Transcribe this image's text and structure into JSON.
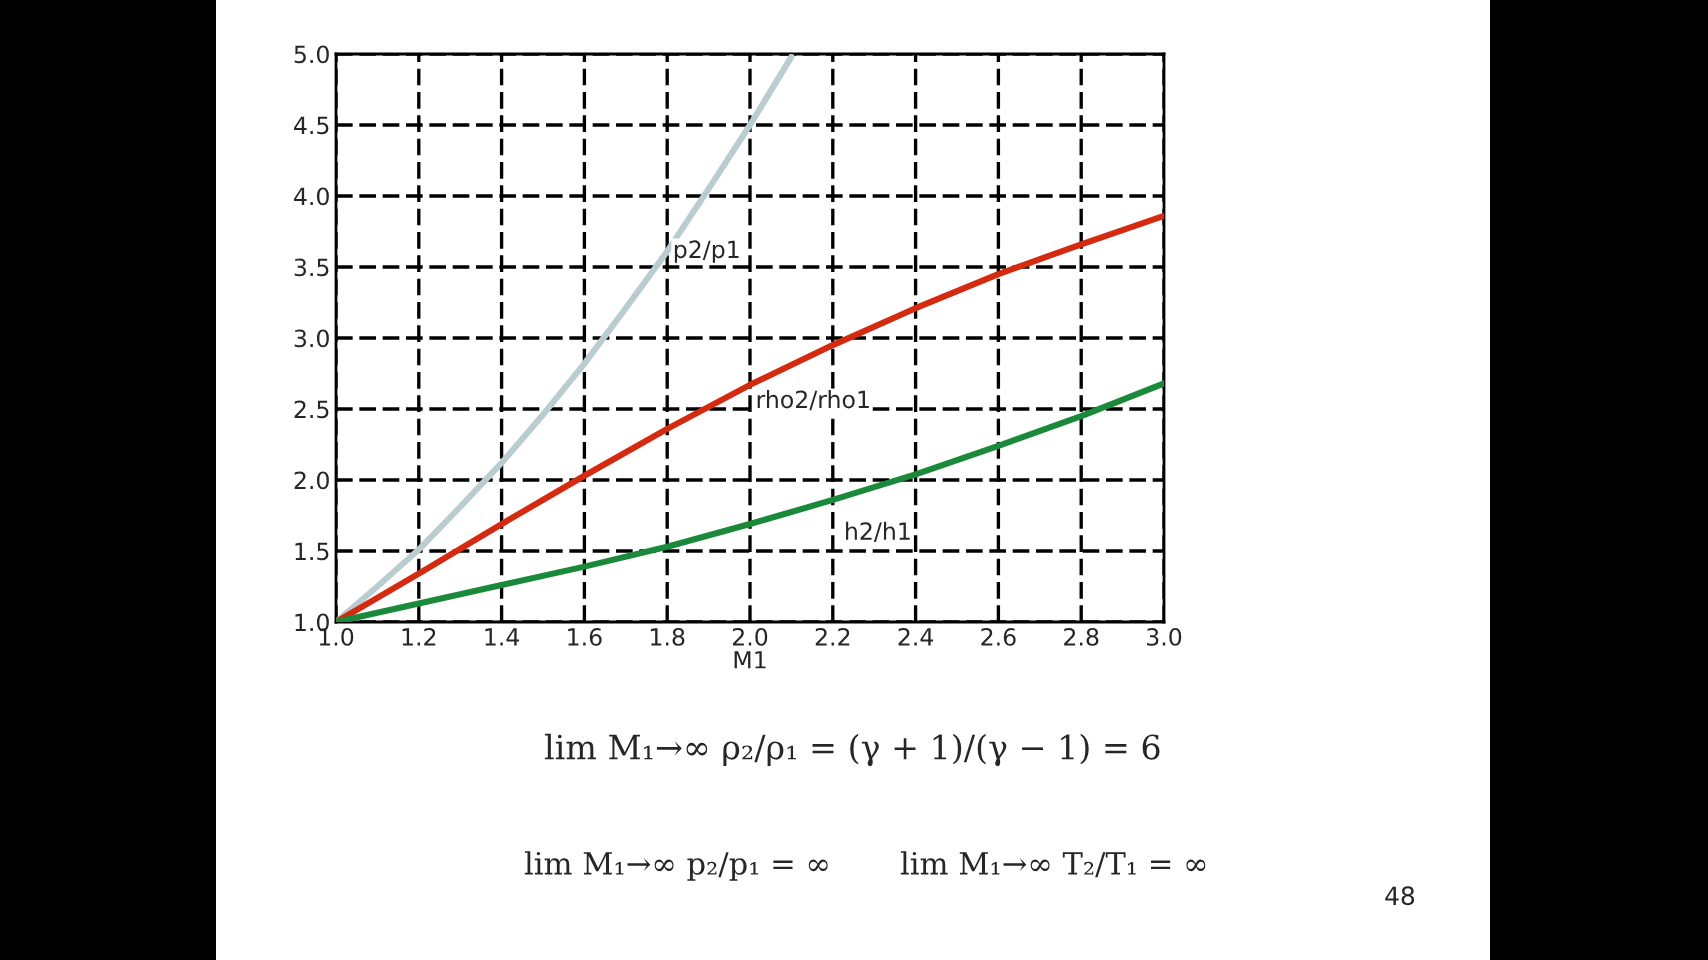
{
  "chart_data": {
    "type": "line",
    "xlabel": "M1",
    "series": [
      {
        "name": "p2/p1",
        "color": "#b9cdd1",
        "x": [
          1.0,
          1.1,
          1.2,
          1.3,
          1.4,
          1.5,
          1.6,
          1.7,
          1.8,
          1.9,
          2.0,
          2.1
        ],
        "values": [
          1.0,
          1.25,
          1.51,
          1.81,
          2.12,
          2.46,
          2.82,
          3.21,
          3.61,
          4.05,
          4.5,
          4.98
        ]
      },
      {
        "name": "rho2/rho1",
        "color": "#d42a10",
        "x": [
          1.0,
          1.2,
          1.4,
          1.6,
          1.8,
          2.0,
          2.2,
          2.4,
          2.6,
          2.8,
          3.0
        ],
        "values": [
          1.0,
          1.34,
          1.69,
          2.03,
          2.36,
          2.67,
          2.95,
          3.21,
          3.45,
          3.66,
          3.86
        ]
      },
      {
        "name": "h2/h1",
        "color": "#1a8a3a",
        "x": [
          1.0,
          1.2,
          1.4,
          1.6,
          1.8,
          2.0,
          2.2,
          2.4,
          2.6,
          2.8,
          3.0
        ],
        "values": [
          1.0,
          1.13,
          1.26,
          1.39,
          1.53,
          1.69,
          1.86,
          2.04,
          2.24,
          2.45,
          2.68
        ]
      }
    ],
    "xlim": [
      1.0,
      3.0
    ],
    "ylim": [
      1.0,
      5.0
    ],
    "xticks": [
      {
        "value": 1,
        "label": "1.0"
      },
      1.2,
      1.4,
      1.6,
      1.8,
      {
        "value": 2,
        "label": "2.0"
      },
      2.2,
      2.4,
      2.6,
      2.8,
      {
        "value": 3,
        "label": "3.0"
      }
    ],
    "yticks": [
      {
        "value": 1,
        "label": "1.0"
      },
      1.5,
      {
        "value": 2,
        "label": "2.0"
      },
      2.5,
      {
        "value": 3,
        "label": "3.0"
      },
      3.5,
      {
        "value": 4,
        "label": "4.0"
      },
      4.5,
      {
        "value": 5,
        "label": "5.0"
      }
    ],
    "grid": true,
    "legend": false,
    "line_style": "solid",
    "marker": "none",
    "annotations": [
      "lim M₁→∞ ρ₂/ρ₁ = (γ + 1)/(γ − 1) = 6",
      "lim M₁→∞ p₂/p₁ = ∞",
      "lim M₁→∞ T₂/T₁ = ∞",
      "48"
    ]
  }
}
